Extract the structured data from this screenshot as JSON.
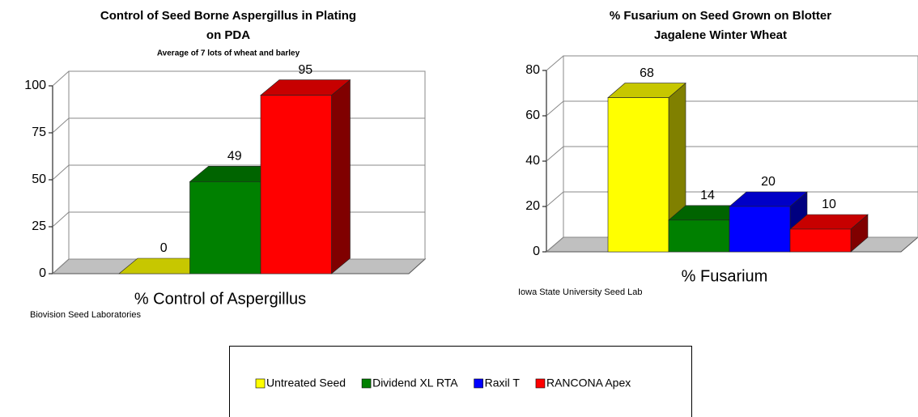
{
  "chart_data": [
    {
      "type": "bar",
      "title": "Control of Seed Borne Aspergillus in Plating",
      "title_line2": "on PDA",
      "subtitle": "Average of 7 lots of wheat and barley",
      "x_label": "% Control of Aspergillus",
      "source": "Biovision Seed Laboratories",
      "ylim": [
        0,
        100
      ],
      "yticks": [
        0,
        25,
        50,
        75,
        100
      ],
      "grid": true,
      "series": [
        {
          "name": "Untreated Seed",
          "color": "#ffff00",
          "values": [
            0
          ]
        },
        {
          "name": "Dividend XL RTA",
          "color": "#008000",
          "values": [
            49
          ]
        },
        {
          "name": "RANCONA Apex",
          "color": "#ff0000",
          "values": [
            95
          ]
        }
      ]
    },
    {
      "type": "bar",
      "title": "% Fusarium on Seed Grown on Blotter",
      "title_line2": "Jagalene Winter Wheat",
      "x_label": "% Fusarium",
      "source": "Iowa State University Seed Lab",
      "ylim": [
        0,
        80
      ],
      "yticks": [
        0,
        20,
        40,
        60,
        80
      ],
      "grid": true,
      "series": [
        {
          "name": "Untreated Seed",
          "color": "#ffff00",
          "values": [
            68
          ]
        },
        {
          "name": "Dividend XL RTA",
          "color": "#008000",
          "values": [
            14
          ]
        },
        {
          "name": "Raxil T",
          "color": "#0000ff",
          "values": [
            20
          ]
        },
        {
          "name": "RANCONA Apex",
          "color": "#ff0000",
          "values": [
            10
          ]
        }
      ]
    }
  ]
}
